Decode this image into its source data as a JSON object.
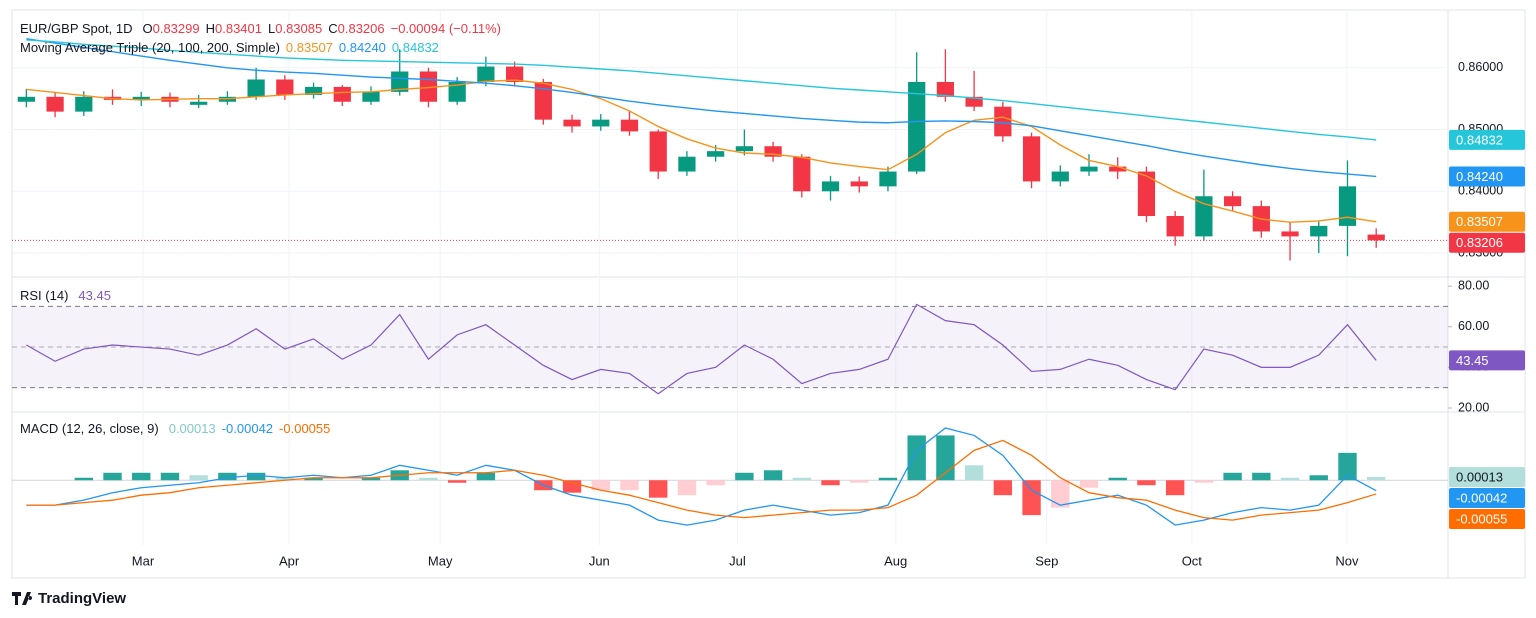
{
  "brand": "TradingView",
  "chart_data": [
    {
      "type": "candlestick",
      "title": "EUR/GBP Spot, 1D",
      "ohlc_letters": [
        "O",
        "H",
        "L",
        "C"
      ],
      "change_label": "−0.00094 (−0.11%)",
      "indicator": "Moving Average Triple (20, 100, 200, Simple)",
      "up_color": "#089981",
      "down_color": "#f23645",
      "categories": [
        null,
        null,
        null,
        null,
        null,
        null,
        null,
        null,
        null,
        null,
        null,
        null,
        null,
        null,
        null,
        null,
        null,
        null,
        null,
        null,
        null,
        null,
        null,
        null,
        null,
        null,
        null,
        null,
        null,
        null,
        null,
        null,
        null,
        null,
        null,
        null,
        null,
        null,
        null,
        null,
        null,
        null,
        null,
        null,
        null,
        null,
        null,
        null
      ],
      "ohlc": [
        [
          0.8545,
          0.8566,
          0.8536,
          0.8553
        ],
        [
          0.8553,
          0.856,
          0.852,
          0.8529
        ],
        [
          0.8529,
          0.8562,
          0.8522,
          0.8553
        ],
        [
          0.8553,
          0.8565,
          0.854,
          0.8548
        ],
        [
          0.8548,
          0.8561,
          0.8538,
          0.8553
        ],
        [
          0.8553,
          0.856,
          0.8536,
          0.8545
        ],
        [
          0.854,
          0.8556,
          0.8535,
          0.8545
        ],
        [
          0.8545,
          0.8562,
          0.854,
          0.8553
        ],
        [
          0.8553,
          0.86,
          0.8548,
          0.8581
        ],
        [
          0.8581,
          0.8588,
          0.8548,
          0.8556
        ],
        [
          0.8556,
          0.8576,
          0.855,
          0.8569
        ],
        [
          0.8569,
          0.8572,
          0.8538,
          0.8545
        ],
        [
          0.8545,
          0.857,
          0.854,
          0.8561
        ],
        [
          0.8561,
          0.863,
          0.8555,
          0.8594
        ],
        [
          0.8594,
          0.86,
          0.8536,
          0.8545
        ],
        [
          0.8545,
          0.8585,
          0.854,
          0.8577
        ],
        [
          0.8577,
          0.8618,
          0.857,
          0.8602
        ],
        [
          0.8602,
          0.861,
          0.857,
          0.8577
        ],
        [
          0.8577,
          0.8582,
          0.8508,
          0.8516
        ],
        [
          0.8516,
          0.8524,
          0.8495,
          0.8505
        ],
        [
          0.8505,
          0.8525,
          0.8498,
          0.8516
        ],
        [
          0.8516,
          0.853,
          0.849,
          0.8497
        ],
        [
          0.8497,
          0.85,
          0.842,
          0.8432
        ],
        [
          0.8432,
          0.8465,
          0.8425,
          0.8456
        ],
        [
          0.8456,
          0.8475,
          0.8448,
          0.8465
        ],
        [
          0.8465,
          0.85,
          0.8458,
          0.8473
        ],
        [
          0.8473,
          0.848,
          0.8448,
          0.8456
        ],
        [
          0.8456,
          0.846,
          0.839,
          0.84
        ],
        [
          0.84,
          0.8425,
          0.8385,
          0.8416
        ],
        [
          0.8416,
          0.8424,
          0.8398,
          0.8408
        ],
        [
          0.8408,
          0.844,
          0.84,
          0.8432
        ],
        [
          0.8432,
          0.8625,
          0.8428,
          0.8577
        ],
        [
          0.8577,
          0.863,
          0.8545,
          0.8553
        ],
        [
          0.8553,
          0.8595,
          0.853,
          0.8537
        ],
        [
          0.8537,
          0.8545,
          0.848,
          0.8489
        ],
        [
          0.8489,
          0.8495,
          0.8405,
          0.8416
        ],
        [
          0.8416,
          0.8442,
          0.8408,
          0.8432
        ],
        [
          0.8432,
          0.846,
          0.8425,
          0.844
        ],
        [
          0.844,
          0.8455,
          0.842,
          0.8432
        ],
        [
          0.8432,
          0.844,
          0.835,
          0.836
        ],
        [
          0.836,
          0.8368,
          0.8312,
          0.8327
        ],
        [
          0.8327,
          0.8435,
          0.832,
          0.8392
        ],
        [
          0.8392,
          0.84,
          0.8368,
          0.8376
        ],
        [
          0.8376,
          0.8385,
          0.8325,
          0.8335
        ],
        [
          0.8335,
          0.835,
          0.8288,
          0.8327
        ],
        [
          0.8327,
          0.8352,
          0.83,
          0.8344
        ],
        [
          0.8344,
          0.845,
          0.8295,
          0.8408
        ],
        [
          0.83299,
          0.83401,
          0.83085,
          0.83206
        ]
      ],
      "series": [
        {
          "color": "#f7931a",
          "values": [
            0.8565,
            0.856,
            0.8555,
            0.855,
            0.8548,
            0.8549,
            0.855,
            0.855,
            0.8553,
            0.8556,
            0.8558,
            0.856,
            0.8561,
            0.8565,
            0.8568,
            0.8572,
            0.8578,
            0.858,
            0.8575,
            0.8565,
            0.855,
            0.853,
            0.8505,
            0.8485,
            0.847,
            0.8462,
            0.846,
            0.8455,
            0.8446,
            0.844,
            0.8435,
            0.846,
            0.8495,
            0.8515,
            0.852,
            0.8505,
            0.8475,
            0.845,
            0.844,
            0.8425,
            0.84,
            0.838,
            0.8368,
            0.8355,
            0.835,
            0.8352,
            0.8358,
            0.83507
          ]
        },
        {
          "color": "#2196f3",
          "values": [
            0.8647,
            0.864,
            0.8633,
            0.8626,
            0.8619,
            0.8612,
            0.8606,
            0.86,
            0.8596,
            0.8593,
            0.8591,
            0.8588,
            0.8585,
            0.8583,
            0.8581,
            0.8578,
            0.8575,
            0.8571,
            0.8566,
            0.856,
            0.8553,
            0.8546,
            0.854,
            0.8535,
            0.853,
            0.8526,
            0.8522,
            0.8518,
            0.8515,
            0.8512,
            0.8511,
            0.8513,
            0.8514,
            0.8513,
            0.8511,
            0.8506,
            0.8498,
            0.849,
            0.8482,
            0.8474,
            0.8465,
            0.8457,
            0.845,
            0.8443,
            0.8437,
            0.8432,
            0.8428,
            0.8424
          ],
          "value_labels": [
            null,
            null,
            null,
            null,
            null,
            null,
            null,
            null,
            null,
            null,
            null,
            null,
            null,
            null,
            null,
            null,
            null,
            null,
            null,
            null,
            null,
            null,
            null,
            null,
            null,
            null,
            null,
            null,
            null,
            null,
            null,
            null,
            null,
            null,
            null,
            null,
            null,
            null,
            null,
            null,
            null,
            null,
            null,
            null,
            null,
            null,
            null,
            "0.84240"
          ]
        },
        {
          "color": "#26c6da",
          "values": [
            0.8645,
            0.8642,
            0.8638,
            0.8635,
            0.8632,
            0.8628,
            0.8625,
            0.8622,
            0.8619,
            0.8616,
            0.8614,
            0.8612,
            0.8611,
            0.861,
            0.8609,
            0.8608,
            0.8607,
            0.8606,
            0.8604,
            0.8601,
            0.8598,
            0.8595,
            0.8591,
            0.8587,
            0.8583,
            0.8579,
            0.8575,
            0.8571,
            0.8567,
            0.8564,
            0.8561,
            0.8558,
            0.8555,
            0.8551,
            0.8547,
            0.8542,
            0.8537,
            0.8532,
            0.8527,
            0.8522,
            0.8517,
            0.8512,
            0.8507,
            0.8502,
            0.8497,
            0.8492,
            0.8488,
            0.84832
          ]
        }
      ],
      "xlim": [
        -0.5,
        49.5
      ],
      "xticks": [
        {
          "value": 4.06,
          "label": "Mar"
        },
        {
          "value": 9.15,
          "label": "Apr"
        },
        {
          "value": 14.41,
          "label": "May"
        },
        {
          "value": 19.95,
          "label": "Jun"
        },
        {
          "value": 24.76,
          "label": "Jul"
        },
        {
          "value": 30.27,
          "label": "Aug"
        },
        {
          "value": 35.53,
          "label": "Sep"
        },
        {
          "value": 40.58,
          "label": "Oct"
        },
        {
          "value": 45.98,
          "label": "Nov"
        }
      ],
      "ylim": [
        0.82645,
        0.86903
      ],
      "yticks": [
        {
          "value": 0.83,
          "label": "0.83000"
        },
        {
          "value": 0.84,
          "label": "0.84000"
        },
        {
          "value": 0.85,
          "label": "0.85000"
        },
        {
          "value": 0.86,
          "label": "0.86000"
        }
      ],
      "grid": true
    },
    {
      "type": "line",
      "title": "RSI (14)",
      "color": "#7e57c2",
      "values": [
        51,
        43,
        49,
        51,
        50,
        49,
        46,
        51,
        59,
        49,
        54,
        44,
        51,
        66,
        44,
        56,
        61,
        51,
        41,
        34,
        39,
        37,
        27,
        37,
        40,
        51,
        44,
        32,
        37,
        39,
        44,
        71,
        63,
        61,
        51,
        38,
        39,
        44,
        41,
        34,
        29,
        49,
        46,
        40,
        40,
        46,
        61,
        43.45
      ],
      "ylim": [
        19,
        84
      ],
      "yticks": [
        {
          "value": 20,
          "label": "20.00"
        },
        {
          "value": 40,
          "label": "40.00"
        },
        {
          "value": 60,
          "label": "60.00"
        },
        {
          "value": 80,
          "label": "80.00"
        }
      ],
      "bands": [
        30,
        70
      ],
      "midline": 50
    },
    {
      "type": "macd",
      "title": "MACD (12, 26, close, 9)",
      "hist_colors": [
        "#26a69a",
        "#b2dfdb",
        "#ff5252",
        "#ffcdd2"
      ],
      "histogram": [
        0,
        0,
        0.0001,
        0.0003,
        0.0003,
        0.0003,
        0.0002,
        0.0003,
        0.0003,
        0.0001,
        0.0001,
        0,
        0.0001,
        0.0004,
        0.0001,
        -0.0001,
        0.0003,
        0,
        -0.0004,
        -0.0005,
        -0.0004,
        -0.0004,
        -0.0007,
        -0.0006,
        -0.0002,
        0.0003,
        0.0004,
        0.0001,
        -0.0002,
        -0.0001,
        0.0001,
        0.0018,
        0.0018,
        0.0006,
        -0.0006,
        -0.0014,
        -0.0011,
        -0.0003,
        0.0001,
        -0.0002,
        -0.0006,
        -0.0001,
        0.0003,
        0.0003,
        0.0001,
        0.0002,
        0.0011,
        0.00013
      ],
      "series": [
        {
          "color": "#2196f3",
          "values": [
            -0.001,
            -0.001,
            -0.0008,
            -0.0005,
            -0.0003,
            -0.0002,
            -0.0001,
            0.0001,
            0.0002,
            0.0001,
            0.0002,
            0.0001,
            0.0002,
            0.0006,
            0.0004,
            0.0002,
            0.0006,
            0.0004,
            -0.0002,
            -0.0006,
            -0.0008,
            -0.001,
            -0.0016,
            -0.0018,
            -0.0016,
            -0.0012,
            -0.001,
            -0.0012,
            -0.0014,
            -0.0013,
            -0.001,
            0.0012,
            0.0021,
            0.0018,
            0.001,
            -0.0004,
            -0.001,
            -0.0008,
            -0.0006,
            -0.001,
            -0.0018,
            -0.0016,
            -0.0013,
            -0.0011,
            -0.0012,
            -0.001,
            0.0002,
            -0.00042
          ]
        },
        {
          "color": "#ff6d00",
          "values": [
            -0.001,
            -0.001,
            -0.0009,
            -0.0008,
            -0.0006,
            -0.0005,
            -0.0003,
            -0.0002,
            -0.0001,
            0,
            0.0001,
            0.0001,
            0.0001,
            0.0002,
            0.0003,
            0.0003,
            0.0003,
            0.0004,
            0.0002,
            -0.0001,
            -0.0004,
            -0.0006,
            -0.0009,
            -0.0012,
            -0.0014,
            -0.0015,
            -0.0014,
            -0.0013,
            -0.0012,
            -0.0012,
            -0.0011,
            -0.0006,
            0.0003,
            0.0012,
            0.0016,
            0.001,
            0.0001,
            -0.0005,
            -0.0007,
            -0.0008,
            -0.0012,
            -0.0015,
            -0.0016,
            -0.0014,
            -0.0013,
            -0.0012,
            -0.0009,
            -0.00055
          ]
        }
      ],
      "ylim": [
        -0.0026,
        0.0027
      ]
    }
  ]
}
